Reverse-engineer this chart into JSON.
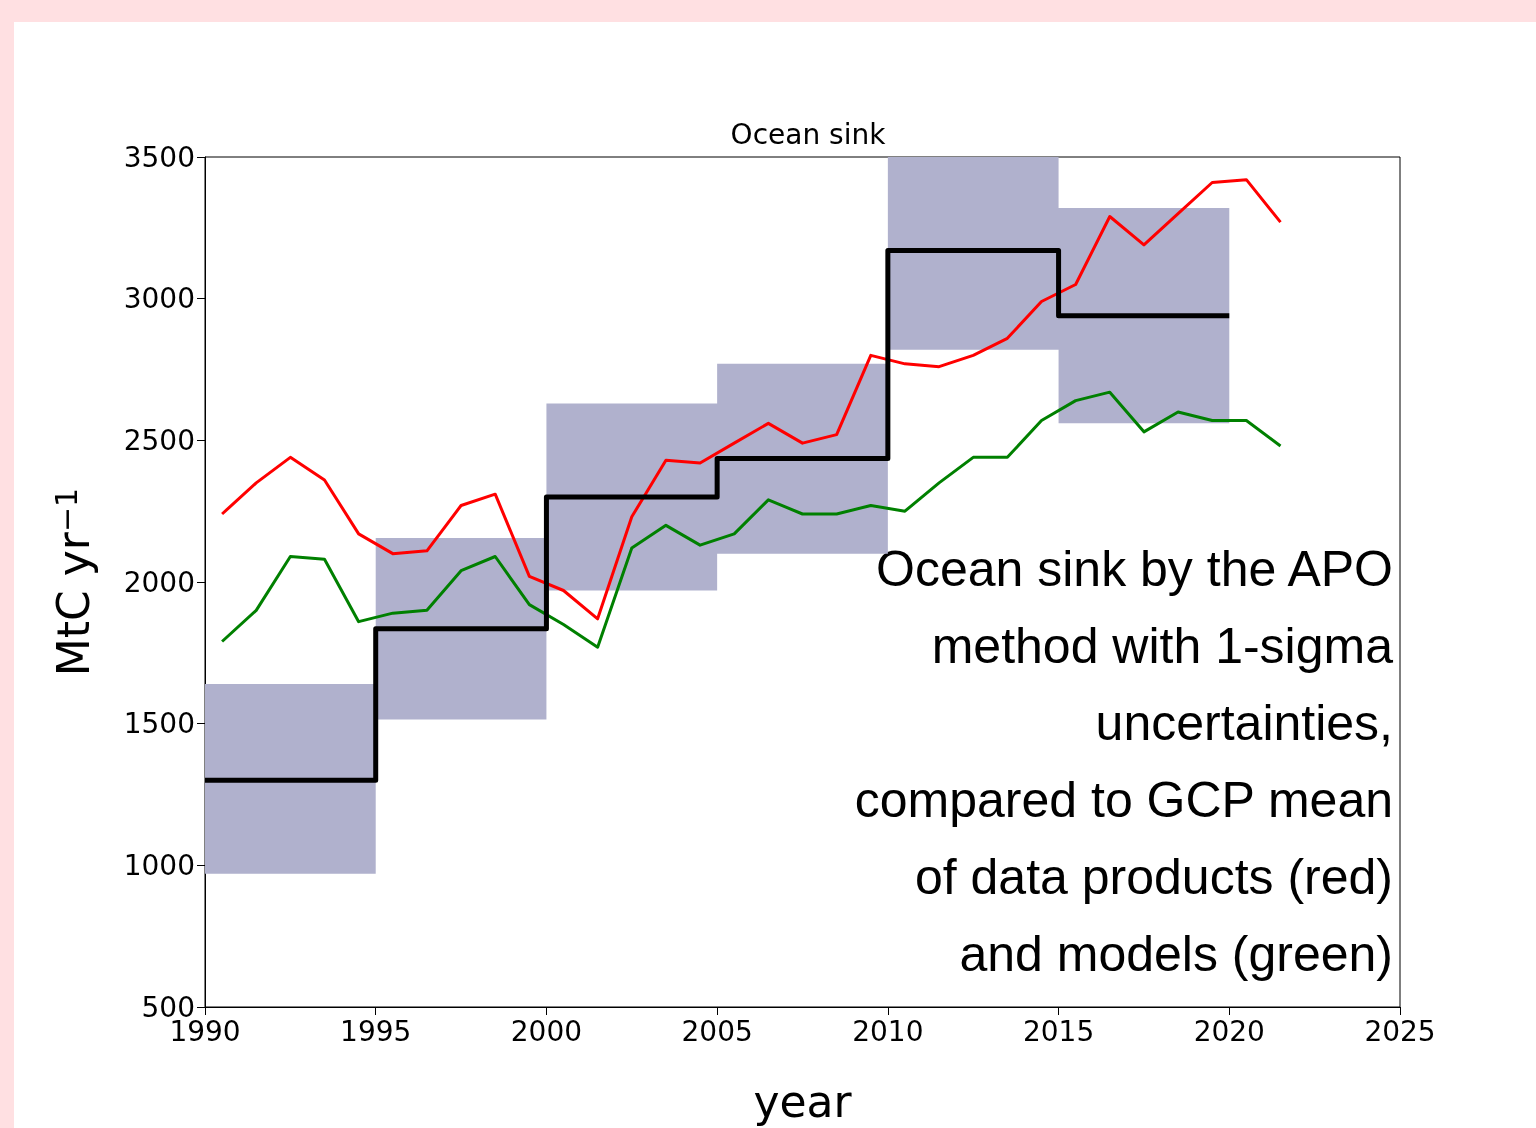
{
  "chart_data": {
    "type": "line",
    "title": "Ocean sink",
    "xlabel": "year",
    "ylabel": "MtC yr$^{−1}$",
    "x": [
      1990.5,
      1991.5,
      1992.5,
      1993.5,
      1994.5,
      1995.5,
      1996.5,
      1997.5,
      1998.5,
      1999.5,
      2000.5,
      2001.5,
      2002.5,
      2003.5,
      2004.5,
      2005.5,
      2006.5,
      2007.5,
      2008.5,
      2009.5,
      2010.5,
      2011.5,
      2012.5,
      2013.5,
      2014.5,
      2015.5,
      2016.5,
      2017.5,
      2018.5,
      2019.5,
      2020.5,
      2021.5
    ],
    "series": [
      {
        "color": "#ff0000",
        "values": [
          2240,
          2350,
          2440,
          2360,
          2170,
          2100,
          2110,
          2270,
          2310,
          2020,
          1970,
          1870,
          2230,
          2430,
          2420,
          2490,
          2560,
          2490,
          2520,
          2800,
          2770,
          2760,
          2800,
          2860,
          2990,
          3050,
          3290,
          3190,
          3300,
          3410,
          3420,
          3270
        ]
      },
      {
        "color": "#008000",
        "values": [
          1790,
          1900,
          2090,
          2080,
          1860,
          1890,
          1900,
          2040,
          2090,
          1920,
          1850,
          1770,
          2120,
          2200,
          2130,
          2170,
          2290,
          2240,
          2240,
          2270,
          2250,
          2350,
          2440,
          2440,
          2570,
          2640,
          2670,
          2530,
          2600,
          2570,
          2570,
          2480
        ]
      },
      {
        "type": "step",
        "color": "#000000",
        "x": [
          1990,
          1995,
          2000,
          2005,
          2010,
          2015,
          2020
        ],
        "values": [
          1300,
          1835,
          2300,
          2436,
          3170,
          2940,
          2940
        ],
        "lower": [
          970,
          1515,
          1970,
          2100,
          2820,
          2560,
          2560
        ],
        "upper": [
          1640,
          2155,
          2630,
          2770,
          3500,
          3320,
          3320
        ]
      }
    ],
    "xlim": [
      1990,
      2025
    ],
    "xticks": [
      1990,
      1995,
      2000,
      2005,
      2010,
      2015,
      2020,
      2025
    ],
    "ylim": [
      500,
      3500
    ],
    "yticks": [
      500,
      1000,
      1500,
      2000,
      2500,
      3000,
      3500
    ],
    "grid": false,
    "marker": "none",
    "annotations": [
      "Ocean sink by the APO\nmethod with 1-sigma\nuncertainties,\ncompared to GCP mean\nof data products (red)\nand models (green)"
    ]
  }
}
